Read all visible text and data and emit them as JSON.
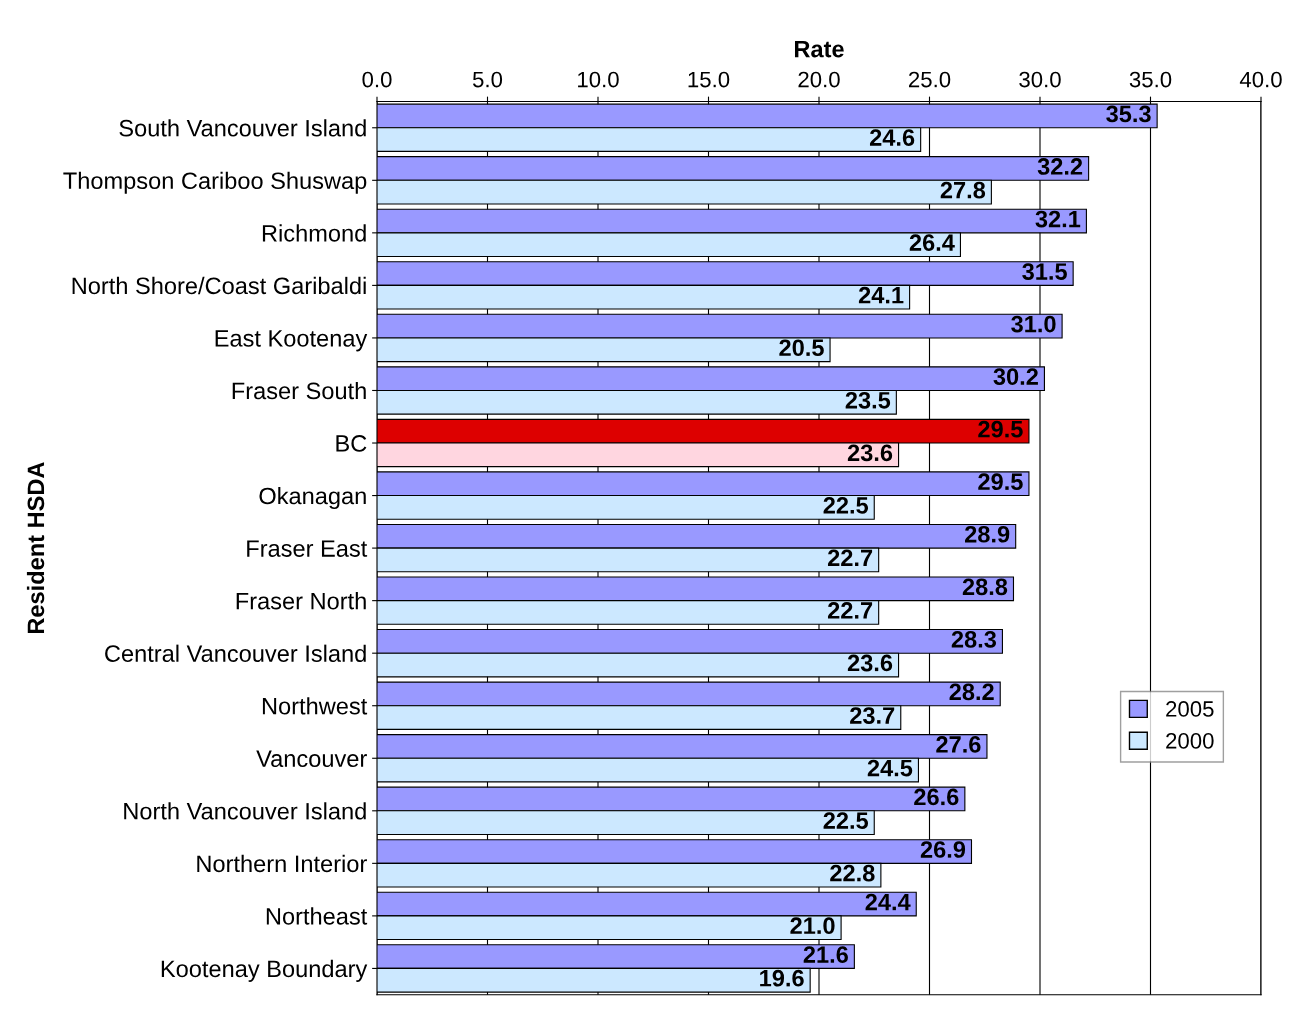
{
  "chart_data": {
    "type": "bar",
    "orientation": "horizontal",
    "xlabel": "Rate",
    "ylabel": "Resident HSDA",
    "categories": [
      "South Vancouver Island",
      "Thompson Cariboo Shuswap",
      "Richmond",
      "North Shore/Coast Garibaldi",
      "East Kootenay",
      "Fraser South",
      "BC",
      "Okanagan",
      "Fraser East",
      "Fraser North",
      "Central Vancouver Island",
      "Northwest",
      "Vancouver",
      "North Vancouver Island",
      "Northern Interior",
      "Northeast",
      "Kootenay Boundary"
    ],
    "series": [
      {
        "name": "2005",
        "color": "#9999ff",
        "colors": [
          "#9999ff",
          "#9999ff",
          "#9999ff",
          "#9999ff",
          "#9999ff",
          "#9999ff",
          "#dd0000",
          "#9999ff",
          "#9999ff",
          "#9999ff",
          "#9999ff",
          "#9999ff",
          "#9999ff",
          "#9999ff",
          "#9999ff",
          "#9999ff",
          "#9999ff"
        ],
        "values": [
          35.3,
          32.2,
          32.1,
          31.5,
          31.0,
          30.2,
          29.5,
          29.5,
          28.9,
          28.8,
          28.3,
          28.2,
          27.6,
          26.6,
          26.9,
          24.4,
          21.6
        ],
        "value_labels": [
          "35.3",
          "32.2",
          "32.1",
          "31.5",
          "31.0",
          "30.2",
          "29.5",
          "29.5",
          "28.9",
          "28.8",
          "28.3",
          "28.2",
          "27.6",
          "26.6",
          "26.9",
          "24.4",
          "21.6"
        ]
      },
      {
        "name": "2000",
        "color": "#cce8ff",
        "colors": [
          "#cce8ff",
          "#cce8ff",
          "#cce8ff",
          "#cce8ff",
          "#cce8ff",
          "#cce8ff",
          "#ffd6e0",
          "#cce8ff",
          "#cce8ff",
          "#cce8ff",
          "#cce8ff",
          "#cce8ff",
          "#cce8ff",
          "#cce8ff",
          "#cce8ff",
          "#cce8ff",
          "#cce8ff"
        ],
        "values": [
          24.6,
          27.8,
          26.4,
          24.1,
          20.5,
          23.5,
          23.6,
          22.5,
          22.7,
          22.7,
          23.6,
          23.7,
          24.5,
          22.5,
          22.8,
          21.0,
          19.6
        ],
        "value_labels": [
          "24.6",
          "27.8",
          "26.4",
          "24.1",
          "20.5",
          "23.5",
          "23.6",
          "22.5",
          "22.7",
          "22.7",
          "23.6",
          "23.7",
          "24.5",
          "22.5",
          "22.8",
          "21.0",
          "19.6"
        ]
      }
    ],
    "xlim": [
      0,
      40
    ],
    "xticks": [
      {
        "value": 0,
        "label": "0.0"
      },
      {
        "value": 5,
        "label": "5.0"
      },
      {
        "value": 10,
        "label": "10.0"
      },
      {
        "value": 15,
        "label": "15.0"
      },
      {
        "value": 20,
        "label": "20.0"
      },
      {
        "value": 25,
        "label": "25.0"
      },
      {
        "value": 30,
        "label": "30.0"
      },
      {
        "value": 35,
        "label": "35.0"
      },
      {
        "value": 40,
        "label": "40.0"
      }
    ],
    "grid": "x",
    "legend": "right"
  }
}
